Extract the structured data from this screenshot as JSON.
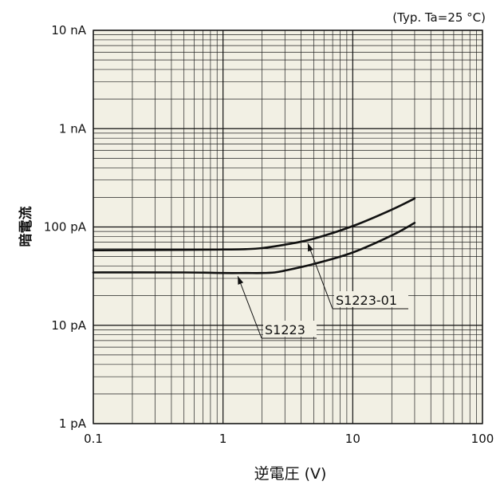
{
  "chart_data": {
    "type": "line",
    "title": "",
    "note": "(Typ. Ta=25 °C)",
    "xlabel": "逆電圧 (V)",
    "ylabel": "暗電流",
    "x_scale": "log",
    "y_scale": "log",
    "xlim": [
      0.1,
      100
    ],
    "ylim_pA": [
      1,
      10000
    ],
    "x_ticks": [
      {
        "value": 0.1,
        "label": "0.1"
      },
      {
        "value": 1,
        "label": "1"
      },
      {
        "value": 10,
        "label": "10"
      },
      {
        "value": 100,
        "label": "100"
      }
    ],
    "y_ticks": [
      {
        "value": 1,
        "label": "1 pA"
      },
      {
        "value": 10,
        "label": "10 pA"
      },
      {
        "value": 100,
        "label": "100 pA"
      },
      {
        "value": 1000,
        "label": "1 nA"
      },
      {
        "value": 10000,
        "label": "10 nA"
      }
    ],
    "grid": true,
    "series": [
      {
        "name": "S1223-01",
        "x": [
          0.1,
          0.5,
          1,
          1.5,
          2,
          3,
          5,
          10,
          20,
          30
        ],
        "y_pA": [
          58,
          58.5,
          59,
          59.5,
          61,
          66,
          76,
          102,
          150,
          195
        ]
      },
      {
        "name": "S1223",
        "x": [
          0.1,
          0.5,
          1,
          1.5,
          2,
          2.5,
          3,
          5,
          10,
          20,
          30
        ],
        "y_pA": [
          34.5,
          34.5,
          34,
          34,
          34,
          34.5,
          36,
          42,
          55,
          82,
          110
        ]
      }
    ],
    "annotations": [
      {
        "text": "S1223-01",
        "points_to_x": 4.5
      },
      {
        "text": "S1223",
        "points_to_x": 1.3
      }
    ]
  }
}
